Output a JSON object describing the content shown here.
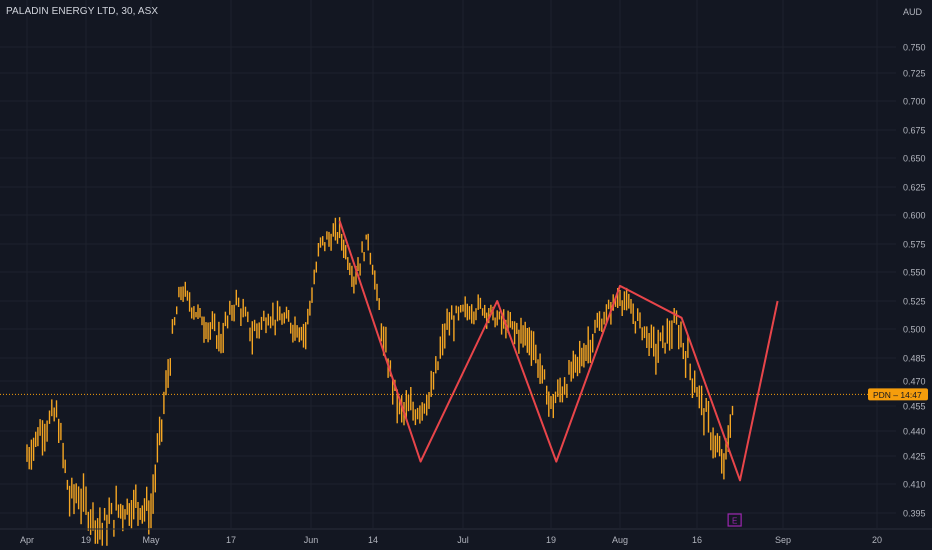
{
  "header": {
    "title": "PALADIN ENERGY LTD, 30, ASX"
  },
  "colors": {
    "background": "#131722",
    "grid": "#1e222d",
    "price_bars": "#f5a623",
    "pattern_line": "#e8454a",
    "axis_text": "#b2b5be",
    "price_label_bg": "#f59d0c",
    "event_marker": "#9c27b0"
  },
  "chart_data": {
    "type": "line",
    "title": "PALADIN ENERGY LTD, 30, ASX",
    "currency_label": "AUD",
    "yticks": [
      "0.750",
      "0.725",
      "0.700",
      "0.675",
      "0.650",
      "0.625",
      "0.600",
      "0.575",
      "0.550",
      "0.525",
      "0.500",
      "0.485",
      "0.470",
      "0.455",
      "0.440",
      "0.425",
      "0.410",
      "0.395"
    ],
    "xticks": [
      "Apr",
      "19",
      "May",
      "17",
      "Jun",
      "14",
      "Jul",
      "19",
      "Aug",
      "16",
      "Sep",
      "20"
    ],
    "last_price_label": "PDN – 14:47",
    "last_price": 0.462,
    "event_marker_label": "E",
    "event_marker_x": "Aug 23",
    "series": [
      {
        "style": "bars",
        "x": [
          "Apr 01",
          "Apr 05",
          "Apr 10",
          "Apr 14",
          "Apr 16",
          "Apr 19",
          "Apr 22",
          "Apr 25",
          "Apr 29",
          "May 01",
          "May 04",
          "May 07",
          "May 10",
          "May 12",
          "May 15",
          "May 18",
          "May 21",
          "May 24",
          "May 27",
          "May 31",
          "Jun 03",
          "Jun 07",
          "Jun 10",
          "Jun 13",
          "Jun 16",
          "Jun 19",
          "Jun 22",
          "Jun 25",
          "Jun 28",
          "Jul 01",
          "Jul 05",
          "Jul 08",
          "Jul 12",
          "Jul 15",
          "Jul 19",
          "Jul 22",
          "Jul 26",
          "Jul 29",
          "Aug 01",
          "Aug 04",
          "Aug 08",
          "Aug 12",
          "Aug 16",
          "Aug 19",
          "Aug 21",
          "Aug 23"
        ],
        "y": [
          0.425,
          0.44,
          0.45,
          0.402,
          0.405,
          0.398,
          0.387,
          0.397,
          0.4,
          0.395,
          0.465,
          0.535,
          0.515,
          0.505,
          0.495,
          0.525,
          0.498,
          0.512,
          0.508,
          0.5,
          0.575,
          0.585,
          0.545,
          0.58,
          0.492,
          0.452,
          0.452,
          0.462,
          0.505,
          0.515,
          0.52,
          0.508,
          0.5,
          0.495,
          0.455,
          0.47,
          0.492,
          0.51,
          0.53,
          0.51,
          0.488,
          0.505,
          0.465,
          0.435,
          0.418,
          0.462
        ]
      },
      {
        "style": "pattern",
        "x": [
          "Jun 07",
          "Jun 23",
          "Jul 08",
          "Jul 20",
          "Aug 01",
          "Aug 13",
          "Aug 24",
          "Aug 31"
        ],
        "y": [
          0.595,
          0.422,
          0.525,
          0.422,
          0.538,
          0.51,
          0.412,
          0.525
        ]
      }
    ],
    "grid": true
  }
}
